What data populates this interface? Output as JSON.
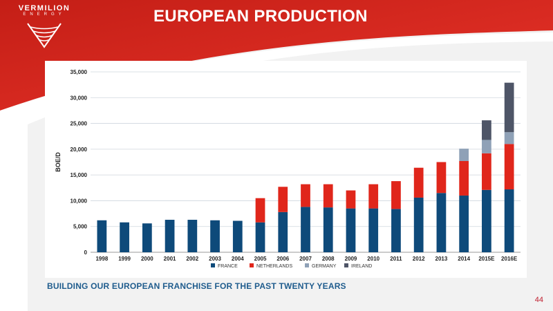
{
  "header": {
    "logo_name": "VERMILION",
    "logo_sub": "ENERGY",
    "title": "EUROPEAN PRODUCTION"
  },
  "footer": {
    "subtitle": "BUILDING OUR EUROPEAN FRANCHISE FOR THE PAST TWENTY YEARS",
    "page_number": "44"
  },
  "colors": {
    "brand_red": "#d7261c",
    "france": "#0e4a7a",
    "netherlands": "#e0261b",
    "germany": "#8fa1b7",
    "ireland": "#4e5567"
  },
  "chart_data": {
    "type": "bar",
    "stacked": true,
    "ylabel": "BOE/D",
    "ylim": [
      0,
      35000
    ],
    "yticks": [
      "0",
      "5,000",
      "10,000",
      "15,000",
      "20,000",
      "25,000",
      "30,000",
      "35,000"
    ],
    "ytick_values": [
      0,
      5000,
      10000,
      15000,
      20000,
      25000,
      30000,
      35000
    ],
    "grid": true,
    "legend": "bottom",
    "categories": [
      "1998",
      "1999",
      "2000",
      "2001",
      "2002",
      "2003",
      "2004",
      "2005",
      "2006",
      "2007",
      "2008",
      "2009",
      "2010",
      "2011",
      "2012",
      "2013",
      "2014",
      "2015E",
      "2016E"
    ],
    "series": [
      {
        "name": "FRANCE",
        "color": "#0e4a7a",
        "values": [
          6200,
          5800,
          5600,
          6300,
          6300,
          6200,
          6100,
          5800,
          7800,
          8800,
          8700,
          8500,
          8500,
          8400,
          10600,
          11500,
          11000,
          12100,
          12200
        ]
      },
      {
        "name": "NETHERLANDS",
        "color": "#e0261b",
        "values": [
          0,
          0,
          0,
          0,
          0,
          0,
          0,
          4700,
          4900,
          4400,
          4500,
          3500,
          4700,
          5400,
          5800,
          6000,
          6700,
          7100,
          8800
        ]
      },
      {
        "name": "GERMANY",
        "color": "#8fa1b7",
        "values": [
          0,
          0,
          0,
          0,
          0,
          0,
          0,
          0,
          0,
          0,
          0,
          0,
          0,
          0,
          0,
          0,
          2400,
          2600,
          2300
        ]
      },
      {
        "name": "IRELAND",
        "color": "#4e5567",
        "values": [
          0,
          0,
          0,
          0,
          0,
          0,
          0,
          0,
          0,
          0,
          0,
          0,
          0,
          0,
          0,
          0,
          0,
          3800,
          9600
        ]
      }
    ]
  }
}
